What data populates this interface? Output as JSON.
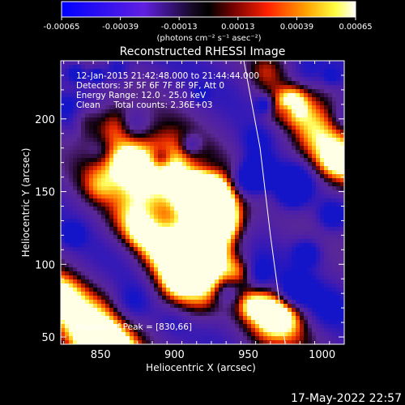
{
  "colorbar": {
    "ticks": [
      "-0.00065",
      "-0.00039",
      "-0.00013",
      "0.00013",
      "0.00039",
      "0.00065"
    ],
    "tick_values": [
      -0.00065,
      -0.00039,
      -0.00013,
      0.00013,
      0.00039,
      0.00065
    ],
    "range": [
      -0.00065,
      0.00065
    ],
    "units_label": "(photons cm⁻² s⁻¹ asec⁻²)"
  },
  "title": "Reconstructed RHESSI Image",
  "annotations": {
    "line1": "12-Jan-2015 21:42:48.000 to 21:44:44.000",
    "line2": "Detectors: 3F 5F 6F 7F 8F 9F, Att 0",
    "line3": "Energy Range: 12.0 - 25.0 keV",
    "line4": "Clean     Total counts: 2.36E+03",
    "peak": "Position of Peak = [830,66]"
  },
  "axes": {
    "xlabel": "Heliocentric X (arcsec)",
    "ylabel": "Heliocentric Y (arcsec)",
    "xlim": [
      823,
      1015
    ],
    "ylim": [
      45,
      240
    ],
    "xticks": [
      850,
      900,
      950,
      1000
    ],
    "yticks": [
      50,
      100,
      150,
      200
    ]
  },
  "limb_curve": [
    [
      947,
      240
    ],
    [
      958,
      180
    ],
    [
      965,
      120
    ],
    [
      975,
      45
    ]
  ],
  "footer": {
    "timestamp": "17-May-2022 22:57"
  },
  "colors": {
    "background": "#000000",
    "foreground": "#ffffff",
    "colormap": [
      "#0000ff",
      "#7020d0",
      "#100818",
      "#000000",
      "#b01000",
      "#ff4000",
      "#ffa000",
      "#ffff40",
      "#ffffff"
    ]
  }
}
